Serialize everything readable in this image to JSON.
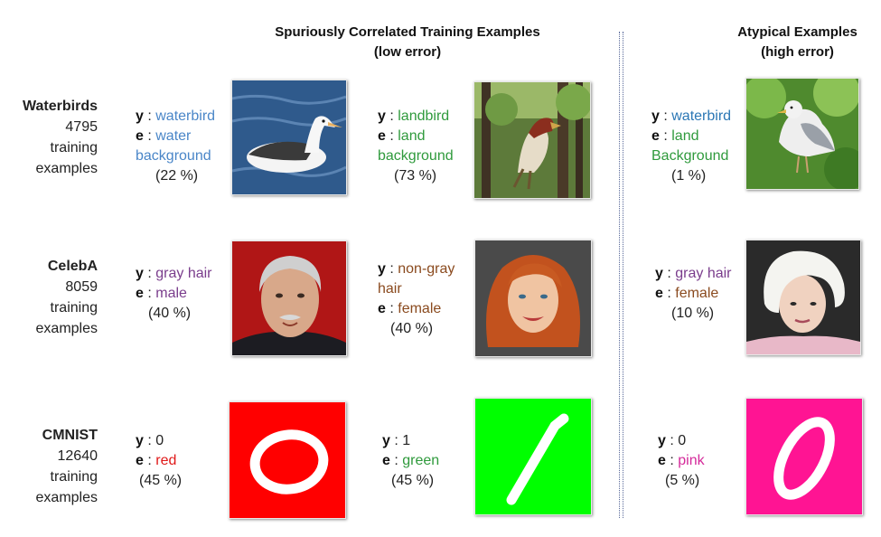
{
  "headers": {
    "spurious_line1": "Spuriously Correlated Training Examples",
    "spurious_line2": "(low error)",
    "atypical_line1": "Atypical Examples",
    "atypical_line2": "(high error)"
  },
  "rows": [
    {
      "dataset": {
        "name": "Waterbirds",
        "count": "4795",
        "line2": "training",
        "line3": "examples"
      },
      "ex1": {
        "y": "waterbird",
        "e": "water background",
        "e_l1": "water",
        "e_l2": "background",
        "pct": "(22 %)",
        "y_color": "#4a86c8",
        "e_color": "#4a86c8",
        "image": "albatross on water"
      },
      "ex2": {
        "y": "landbird",
        "e": "land background",
        "e_l1": "land",
        "e_l2": "background",
        "pct": "(73 %)",
        "y_color": "#2f9a3c",
        "e_color": "#2f9a3c",
        "image": "bird perched in forest"
      },
      "ex3": {
        "y": "waterbird",
        "e": "land Background",
        "e_l1": "land",
        "e_l2": "Background",
        "pct": "(1 %)",
        "y_color": "#2b77b5",
        "e_color": "#2f9a3c",
        "image": "gull on grass"
      }
    },
    {
      "dataset": {
        "name": "CelebA",
        "count": "8059",
        "line2": "training",
        "line3": "examples"
      },
      "ex1": {
        "y": "gray hair",
        "e": "male",
        "pct": "(40 %)",
        "y_color": "#7a3d8c",
        "e_color": "#7a3d8c",
        "image": "gray-haired man"
      },
      "ex2": {
        "y": "non-gray hair",
        "y_l1": "non-gray",
        "y_l2": "hair",
        "e": "female",
        "pct": "(40 %)",
        "y_color": "#8a4a1e",
        "e_color": "#8a4a1e",
        "image": "red-haired woman"
      },
      "ex3": {
        "y": "gray hair",
        "e": "female",
        "pct": "(10 %)",
        "y_color": "#7a3d8c",
        "e_color": "#8a4a1e",
        "image": "white-haired woman"
      }
    },
    {
      "dataset": {
        "name": "CMNIST",
        "count": "12640",
        "line2": "training",
        "line3": "examples"
      },
      "ex1": {
        "y": "0",
        "e": "red",
        "pct": "(45 %)",
        "y_color": "#222222",
        "e_color": "#e01818",
        "image": "digit 0 on red",
        "bg": "#ff0000"
      },
      "ex2": {
        "y": "1",
        "e": "green",
        "pct": "(45 %)",
        "y_color": "#222222",
        "e_color": "#2f9a3c",
        "image": "digit 1 on green",
        "bg": "#00ff00"
      },
      "ex3": {
        "y": "0",
        "e": "pink",
        "pct": "(5 %)",
        "y_color": "#222222",
        "e_color": "#d42a9a",
        "image": "digit 0 on pink",
        "bg": "#ff1493"
      }
    }
  ]
}
